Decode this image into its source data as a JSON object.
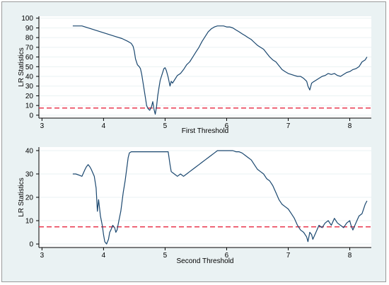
{
  "chart_data": [
    {
      "type": "line",
      "xlabel": "First Threshold",
      "ylabel": "LR Statistics",
      "xlim": [
        2.95,
        8.35
      ],
      "ylim": [
        -3,
        102
      ],
      "xticks": [
        3,
        4,
        5,
        6,
        7,
        8
      ],
      "yticks": [
        0,
        10,
        20,
        30,
        40,
        50,
        60,
        70,
        80,
        90,
        100
      ],
      "line_color": "#1a476f",
      "ref_line": {
        "y": 7.35,
        "color": "#e8384f",
        "style": "dashed"
      },
      "grid": true,
      "series": [
        {
          "x": [
            3.5,
            3.6,
            3.65,
            3.7,
            3.8,
            3.9,
            4.0,
            4.1,
            4.2,
            4.3,
            4.4,
            4.45,
            4.48,
            4.5,
            4.52,
            4.55,
            4.58,
            4.6,
            4.62,
            4.65,
            4.68,
            4.7,
            4.72,
            4.75,
            4.78,
            4.8,
            4.82,
            4.84,
            4.86,
            4.88,
            4.9,
            4.92,
            4.95,
            4.98,
            5.0,
            5.02,
            5.05,
            5.08,
            5.1,
            5.12,
            5.15,
            5.2,
            5.25,
            5.3,
            5.35,
            5.4,
            5.45,
            5.5,
            5.55,
            5.6,
            5.65,
            5.7,
            5.75,
            5.8,
            5.85,
            5.9,
            5.95,
            6.0,
            6.05,
            6.1,
            6.15,
            6.2,
            6.25,
            6.3,
            6.35,
            6.4,
            6.45,
            6.5,
            6.55,
            6.6,
            6.65,
            6.7,
            6.75,
            6.8,
            6.85,
            6.9,
            6.95,
            7.0,
            7.05,
            7.1,
            7.15,
            7.2,
            7.25,
            7.3,
            7.32,
            7.35,
            7.38,
            7.4,
            7.45,
            7.5,
            7.55,
            7.6,
            7.65,
            7.7,
            7.75,
            7.8,
            7.85,
            7.9,
            7.95,
            8.0,
            8.05,
            8.1,
            8.15,
            8.2,
            8.25,
            8.28
          ],
          "y": [
            92,
            92,
            92,
            91,
            89,
            87,
            85,
            83,
            81,
            79,
            76,
            74,
            71,
            66,
            58,
            52,
            50,
            48,
            42,
            30,
            18,
            10,
            7,
            5,
            9,
            14,
            6,
            1,
            8,
            20,
            28,
            36,
            42,
            48,
            49,
            46,
            39,
            30,
            35,
            33,
            36,
            41,
            43,
            47,
            52,
            55,
            60,
            65,
            70,
            76,
            81,
            86,
            89,
            91,
            92,
            92,
            92,
            91,
            91,
            90,
            88,
            86,
            84,
            82,
            80,
            78,
            75,
            72,
            70,
            68,
            64,
            60,
            57,
            55,
            51,
            47,
            45,
            43,
            42,
            41,
            40,
            40,
            38,
            35,
            30,
            26,
            33,
            34,
            36,
            38,
            40,
            41,
            43,
            42,
            43,
            41,
            40,
            42,
            44,
            45,
            47,
            48,
            50,
            55,
            57,
            60
          ]
        }
      ]
    },
    {
      "type": "line",
      "xlabel": "Second Threshold",
      "ylabel": "LR Statistics",
      "xlim": [
        2.95,
        8.35
      ],
      "ylim": [
        -1.5,
        41.5
      ],
      "xticks": [
        3,
        4,
        5,
        6,
        7,
        8
      ],
      "yticks": [
        0,
        10,
        20,
        30,
        40
      ],
      "line_color": "#1a476f",
      "ref_line": {
        "y": 7.35,
        "color": "#e8384f",
        "style": "dashed"
      },
      "grid": true,
      "series": [
        {
          "x": [
            3.5,
            3.55,
            3.6,
            3.65,
            3.7,
            3.72,
            3.75,
            3.78,
            3.8,
            3.85,
            3.88,
            3.9,
            3.92,
            3.95,
            3.98,
            4.0,
            4.02,
            4.05,
            4.08,
            4.1,
            4.12,
            4.15,
            4.18,
            4.2,
            4.22,
            4.25,
            4.28,
            4.3,
            4.32,
            4.35,
            4.38,
            4.4,
            4.42,
            4.45,
            4.5,
            4.55,
            4.6,
            4.65,
            4.7,
            4.75,
            4.8,
            4.85,
            4.9,
            4.95,
            5.0,
            5.05,
            5.08,
            5.1,
            5.15,
            5.2,
            5.25,
            5.3,
            5.35,
            5.4,
            5.45,
            5.5,
            5.55,
            5.6,
            5.65,
            5.7,
            5.75,
            5.8,
            5.85,
            5.9,
            5.95,
            6.0,
            6.05,
            6.1,
            6.15,
            6.2,
            6.25,
            6.3,
            6.35,
            6.4,
            6.45,
            6.5,
            6.55,
            6.6,
            6.65,
            6.7,
            6.75,
            6.8,
            6.85,
            6.9,
            6.95,
            7.0,
            7.05,
            7.1,
            7.15,
            7.2,
            7.25,
            7.3,
            7.32,
            7.35,
            7.38,
            7.4,
            7.45,
            7.5,
            7.55,
            7.6,
            7.65,
            7.7,
            7.75,
            7.8,
            7.85,
            7.9,
            7.95,
            8.0,
            8.02,
            8.05,
            8.1,
            8.15,
            8.2,
            8.25,
            8.28
          ],
          "y": [
            30,
            30,
            29.5,
            29,
            32,
            33,
            34,
            33,
            32,
            29,
            24,
            14,
            19,
            12,
            8,
            4,
            1,
            0,
            2,
            5,
            6,
            8,
            7,
            5,
            6,
            10,
            14,
            18,
            22,
            27,
            33,
            37,
            39,
            39.5,
            39.5,
            39.5,
            39.5,
            39.5,
            39.5,
            39.5,
            39.5,
            39.5,
            39.5,
            39.5,
            39.5,
            39.5,
            34,
            31,
            30,
            29,
            30,
            29,
            30,
            31,
            32,
            33,
            34,
            35,
            36,
            37,
            38,
            39,
            40,
            40,
            40,
            40,
            40,
            40,
            39.5,
            39.5,
            39,
            38,
            37,
            36,
            34,
            32,
            31,
            30,
            28,
            27,
            25,
            22,
            19,
            17,
            16,
            15,
            13,
            11,
            8,
            6,
            5,
            3,
            1,
            5,
            4,
            2,
            5,
            8,
            7,
            9,
            10,
            8,
            11,
            9,
            8,
            7,
            9,
            10,
            8,
            6,
            9,
            12,
            13,
            17,
            18.5
          ]
        }
      ]
    }
  ]
}
